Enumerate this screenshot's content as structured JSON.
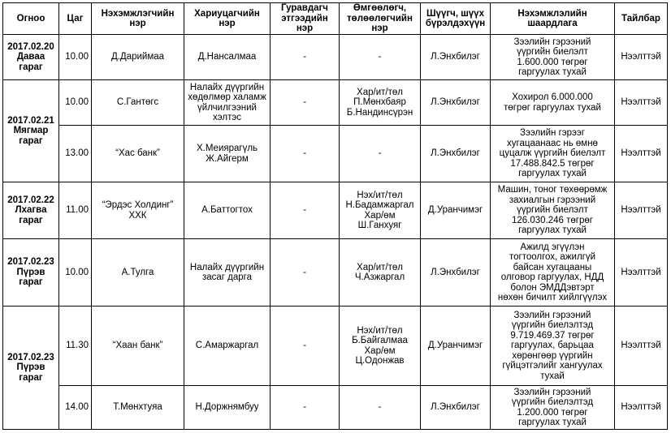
{
  "headers": [
    "Огноо",
    "Цаг",
    "Нэхэмжлэгчийн нэр",
    "Хариуцагчийн нэр",
    "Гуравдагч этгээдийн нэр",
    "Өмгөөлөгч, төлөөлөгчийн нэр",
    "Шүүгч, шүүх бүрэлдэхүүн",
    "Нэхэмжлэлийн шаардлага",
    "Тайлбар"
  ],
  "groups": [
    {
      "date": "2017.02.20\nДаваа\nгараг",
      "rows": [
        {
          "time": "10.00",
          "plaintiff": "Д.Дариймаа",
          "defendant": "Д.Нансалмаа",
          "third_party": "-",
          "representative": "-",
          "judge": "Л.Энхбилэг",
          "claim": "Зээлийн гэрээний\nүүргийн биелэлт\n1.600.000 төгрөг\nгаргуулах тухай",
          "note": "Нээлттэй"
        }
      ]
    },
    {
      "date": "2017.02.21\nМягмар\nгараг",
      "rows": [
        {
          "time": "10.00",
          "plaintiff": "С.Гантөгс",
          "defendant": "Налайх дүүргийн\nхөдөлмөр халамж\nүйлчилгээний\nхэлтэс",
          "third_party": "-",
          "representative": "Хар/ит/төл\nП.Мөнхбаяр\nБ.Нандинсүрэн",
          "judge": "Л.Энхбилэг",
          "claim": "Хохирол 6.000.000\nтөгрөг гаргуулах тухай",
          "note": "Нээлттэй"
        },
        {
          "time": "13.00",
          "plaintiff": "“Хас банк”",
          "defendant": "Х.Меиярагүль\nЖ.Айгерм",
          "third_party": "-",
          "representative": "-",
          "judge": "Л.Энхбилэг",
          "claim": "Зээлийн гэрээг\nхугацаанаас нь өмнө\nцуцалж үүргийн биелэлт\n17.488.842.5 төгрөг\nгаргуулах тухай",
          "note": "Нээлттэй"
        }
      ]
    },
    {
      "date": "2017.02.22\nЛхагва\nгараг",
      "rows": [
        {
          "time": "11.00",
          "plaintiff": "“Эрдэс Холдинг”\nХХК",
          "defendant": "А.Баттогтох",
          "third_party": "-",
          "representative": "Нэх/ит/төл\nН.Бадамжаргал\nХар/өм\nШ.Ганхуяг",
          "judge": "Д.Уранчимэг",
          "claim": "Машин, тоног төхөөрөмж\nзахиалгын гэрээний\nүүргийн биелэлт\n126.030.246 төгрөг\nгаргуулах тухай",
          "note": "Нээлттэй"
        }
      ]
    },
    {
      "date": "2017.02.23\nПүрэв\nгараг",
      "rows": [
        {
          "time": "10.00",
          "plaintiff": "А.Тулга",
          "defendant": "Налайх дүүргийн\nзасаг дарга",
          "third_party": "-",
          "representative": "Хар/ит/төл\nЧ.Азжаргал",
          "judge": "Л.Энхбилэг",
          "claim": "Ажилд эгүүлэн\nтогтоолгох, ажилгүй\nбайсан хугацааны\nолговор гаргуулах, НДД\nболон ЭМДДэвтэрт\nнөхөн бичилт хийлгүүлэх",
          "note": "Нээлттэй"
        }
      ]
    },
    {
      "date": "2017.02.23\nПүрэв\nгараг",
      "rows": [
        {
          "time": "11.30",
          "plaintiff": "“Хаан банк”",
          "defendant": "С.Амаржаргал",
          "third_party": "-",
          "representative": "Нэх/ит/төл\nБ.Байгалмаа\nХар/өм\nЦ.Одонжав",
          "judge": "Д.Уранчимэг",
          "claim": "Зээлийн гэрээний\nүүргийн биелэлтэд\n9.719.469.37 төгрөг\nгаргуулах, барьцаа\nхөрөнгөөр үүргийн\nгүйцэтгэлийг хангуулах\nтухай",
          "note": "Нээлттэй"
        },
        {
          "time": "14.00",
          "plaintiff": "Т.Мөнхтуяа",
          "defendant": "Н.Доржнямбуу",
          "third_party": "-",
          "representative": "-",
          "judge": "Л.Энхбилэг",
          "claim": "Зээлийн гэрээний\nүүргийн биелэлтэд\n1.200.000 төгрөг\nгаргуулах тухай",
          "note": "Нээлттэй"
        }
      ]
    }
  ]
}
